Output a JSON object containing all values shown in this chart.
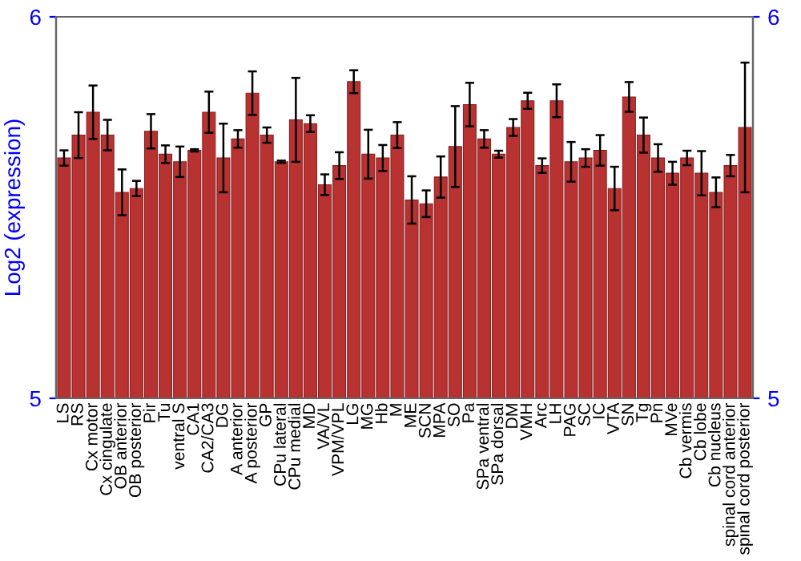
{
  "chart_data": {
    "type": "bar",
    "ylabel": "Log2 (expression)",
    "color": "#b83232",
    "categories": [
      "LS",
      "RS",
      "Cx motor",
      "Cx cingulate",
      "OB anterior",
      "OB posterior",
      "Pir",
      "Tu",
      "ventral S",
      "CA1",
      "CA2/CA3",
      "DG",
      "A anterior",
      "A posterior",
      "GP",
      "CPu lateral",
      "CPu medial",
      "MD",
      "VA/VL",
      "VPM/VPL",
      "LG",
      "MG",
      "Hb",
      "M",
      "ME",
      "SCN",
      "MPA",
      "SO",
      "Pa",
      "SPa ventral",
      "SPa dorsal",
      "DM",
      "VMH",
      "Arc",
      "LH",
      "PAG",
      "SC",
      "IC",
      "VTA",
      "SN",
      "Tg",
      "Pn",
      "MVe",
      "Cb vermis",
      "Cb lobe",
      "Cb nucleus",
      "spinal cord anterior",
      "spinal cord posterior"
    ],
    "values": [
      5.63,
      5.69,
      5.75,
      5.69,
      5.54,
      5.55,
      5.7,
      5.64,
      5.62,
      5.65,
      5.75,
      5.63,
      5.68,
      5.8,
      5.69,
      5.62,
      5.73,
      5.72,
      5.56,
      5.61,
      5.83,
      5.64,
      5.63,
      5.69,
      5.52,
      5.51,
      5.58,
      5.66,
      5.77,
      5.68,
      5.64,
      5.71,
      5.78,
      5.61,
      5.78,
      5.62,
      5.63,
      5.65,
      5.55,
      5.79,
      5.69,
      5.63,
      5.59,
      5.63,
      5.59,
      5.54,
      5.61,
      5.71
    ],
    "errors": [
      0.02,
      0.06,
      0.07,
      0.04,
      0.06,
      0.02,
      0.045,
      0.023,
      0.04,
      0.003,
      0.054,
      0.09,
      0.023,
      0.057,
      0.02,
      0.003,
      0.11,
      0.022,
      0.027,
      0.035,
      0.03,
      0.064,
      0.034,
      0.034,
      0.062,
      0.035,
      0.054,
      0.106,
      0.057,
      0.023,
      0.009,
      0.022,
      0.021,
      0.019,
      0.043,
      0.052,
      0.023,
      0.04,
      0.057,
      0.039,
      0.046,
      0.036,
      0.03,
      0.019,
      0.058,
      0.039,
      0.028,
      0.17
    ],
    "ylim": [
      5,
      6
    ],
    "yticks": [
      5,
      6
    ],
    "y2lim": [
      5,
      6
    ],
    "y2ticks": [
      5,
      6
    ],
    "grid": false
  }
}
